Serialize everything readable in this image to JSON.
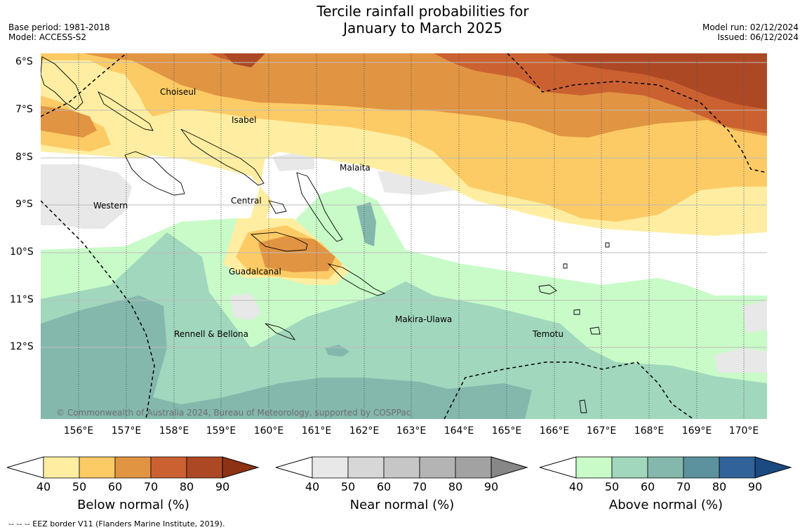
{
  "title_line1": "Tercile rainfall probabilities for",
  "title_line2": "January to March 2025",
  "base_period": "Base period: 1981-2018",
  "model": "Model: ACCESS-S2",
  "model_run": "Model run: 02/12/2024",
  "issued": "Issued: 06/12/2024",
  "lat_labels": [
    "6°S",
    "7°S",
    "8°S",
    "9°S",
    "10°S",
    "11°S",
    "12°S"
  ],
  "lon_labels": [
    "156°E",
    "157°E",
    "158°E",
    "159°E",
    "160°E",
    "161°E",
    "162°E",
    "163°E",
    "164°E",
    "165°E",
    "166°E",
    "167°E",
    "168°E",
    "169°E",
    "170°E"
  ],
  "regions": {
    "choiseul": "Choiseul",
    "isabel": "Isabel",
    "malaita": "Malaita",
    "western": "Western",
    "central": "Central",
    "guadalcanal": "Guadalcanal",
    "makira": "Makira-Ulawa",
    "temotu": "Temotu",
    "rennell": "Rennell & Bellona"
  },
  "copyright": "© Commonwealth of Australia 2024, Bureau of Meteorology, supported by COSPPac",
  "colorbars": {
    "below": {
      "label": "Below normal (%)",
      "ticks": [
        "40",
        "50",
        "60",
        "70",
        "80",
        "90"
      ],
      "colors": [
        "#ffeea1",
        "#fdcb65",
        "#e19442",
        "#cb6130",
        "#ad4825",
        "#8e3215"
      ]
    },
    "near": {
      "label": "Near normal (%)",
      "ticks": [
        "40",
        "50",
        "60",
        "70",
        "80",
        "90"
      ],
      "colors": [
        "#e8e8e8",
        "#d7d7d7",
        "#c6c6c6",
        "#b4b4b4",
        "#a2a2a2",
        "#878787"
      ]
    },
    "above": {
      "label": "Above normal (%)",
      "ticks": [
        "40",
        "50",
        "60",
        "70",
        "80",
        "90"
      ],
      "colors": [
        "#c8fbc8",
        "#a1d7bd",
        "#84b8ad",
        "#5b929e",
        "#31639a",
        "#1a4a80"
      ]
    }
  },
  "footer": "--  --  -- EEZ border V11 (Flanders Marine Institute, 2019)."
}
